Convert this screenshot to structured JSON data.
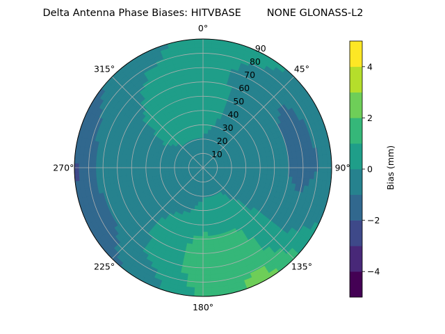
{
  "chart_data": {
    "type": "heatmap",
    "projection": "polar",
    "title": "Delta Antenna Phase Biases: HITVBASE        NONE GLONASS-L2",
    "angle_labels": [
      {
        "deg": 0,
        "text": "0°"
      },
      {
        "deg": 45,
        "text": "45°"
      },
      {
        "deg": 90,
        "text": "90°"
      },
      {
        "deg": 135,
        "text": "135°"
      },
      {
        "deg": 180,
        "text": "180°"
      },
      {
        "deg": 225,
        "text": "225°"
      },
      {
        "deg": 270,
        "text": "270°"
      },
      {
        "deg": 315,
        "text": "315°"
      }
    ],
    "radial_ticks": [
      10,
      20,
      30,
      40,
      50,
      60,
      70,
      80,
      90
    ],
    "radial_max": 90,
    "angular_direction": "clockwise",
    "zero_location": "top",
    "grid": true,
    "colorbar": {
      "label": "Bias (mm)",
      "ticks": [
        -4,
        -2,
        0,
        2,
        4
      ],
      "range": [
        -5,
        5
      ],
      "levels": [
        -5,
        -4,
        -3,
        -2,
        -1,
        0,
        1,
        2,
        3,
        4,
        5
      ],
      "colormap": "viridis"
    },
    "bias_field": {
      "azimuths_deg": [
        0,
        30,
        60,
        90,
        120,
        150,
        180,
        210,
        240,
        270,
        300,
        330
      ],
      "zenith_deg": [
        10,
        30,
        50,
        70,
        90
      ],
      "values_mm": [
        [
          -0.3,
          0.2,
          0.5,
          0.6,
          0.4
        ],
        [
          -0.3,
          -0.2,
          -0.2,
          -0.5,
          0.3
        ],
        [
          -0.3,
          -0.4,
          -0.8,
          -1.2,
          -0.5
        ],
        [
          -0.3,
          -0.2,
          -0.5,
          -1.5,
          -0.6
        ],
        [
          -0.3,
          -0.4,
          -0.4,
          -0.6,
          0.2
        ],
        [
          -0.3,
          0.3,
          1.0,
          1.5,
          2.5
        ],
        [
          -0.3,
          0.2,
          1.2,
          1.7,
          1.2
        ],
        [
          -0.3,
          -0.3,
          0.5,
          0.2,
          -0.8
        ],
        [
          -0.3,
          -0.5,
          -0.8,
          -1.0,
          -1.8
        ],
        [
          -0.3,
          -0.2,
          -0.5,
          -0.6,
          -2.2
        ],
        [
          -0.3,
          0.0,
          -0.2,
          -0.7,
          -1.2
        ],
        [
          -0.3,
          0.3,
          0.6,
          0.2,
          -0.4
        ]
      ]
    },
    "colors": {
      "viridis": [
        "#440154",
        "#482878",
        "#3e4989",
        "#31688e",
        "#26828e",
        "#1f9e89",
        "#35b779",
        "#6ece58",
        "#b5de2b",
        "#fde725"
      ]
    }
  }
}
